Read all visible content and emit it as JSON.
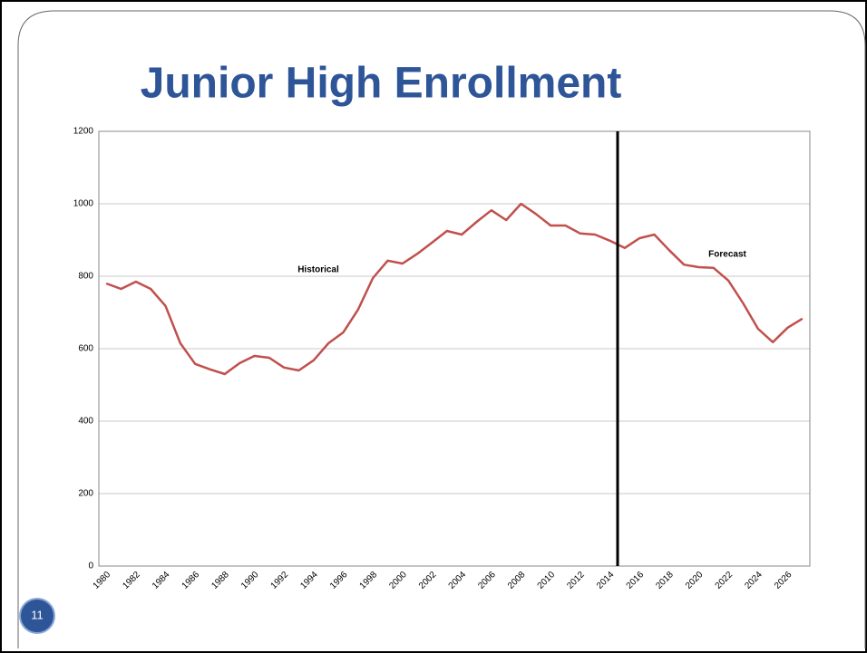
{
  "chart_data": {
    "type": "line",
    "title": "Junior High Enrollment",
    "categories": [
      "1980",
      null,
      "1982",
      null,
      "1984",
      null,
      "1986",
      null,
      "1988",
      null,
      "1990",
      null,
      "1992",
      null,
      "1994",
      null,
      "1996",
      null,
      "1998",
      null,
      "2000",
      null,
      "2002",
      null,
      "2004",
      null,
      "2006",
      null,
      "2008",
      null,
      "2010",
      null,
      "2012",
      null,
      "2014",
      null,
      "2016",
      null,
      "2018",
      null,
      "2020",
      null,
      "2022",
      null,
      "2024",
      null,
      "2026",
      null
    ],
    "values": [
      780,
      765,
      785,
      765,
      718,
      615,
      558,
      543,
      530,
      560,
      580,
      575,
      548,
      540,
      568,
      615,
      645,
      708,
      795,
      843,
      835,
      862,
      893,
      925,
      915,
      950,
      982,
      955,
      1000,
      972,
      940,
      940,
      918,
      915,
      898,
      878,
      905,
      915,
      872,
      832,
      825,
      823,
      788,
      725,
      655,
      618,
      658,
      683
    ],
    "color": "#c0504d",
    "ylim": [
      0,
      1200
    ],
    "yticks": [
      0,
      200,
      400,
      600,
      800,
      1000,
      1200
    ],
    "grid": true,
    "annotations": [
      "Historical",
      "Forecast"
    ]
  },
  "page_number": "11"
}
